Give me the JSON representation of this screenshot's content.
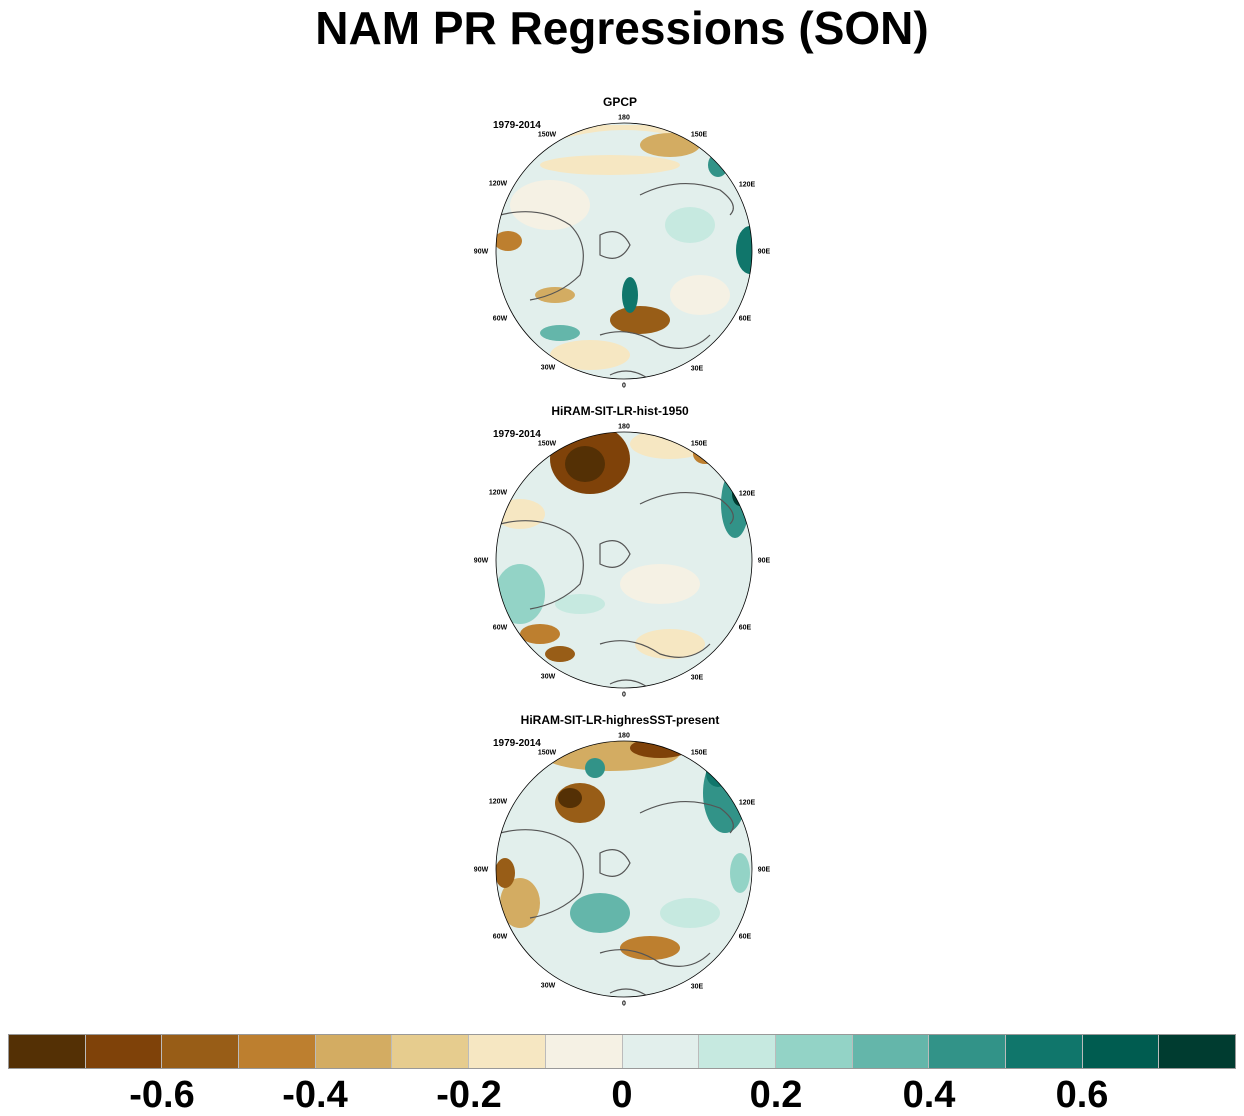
{
  "title": "NAM PR Regressions (SON)",
  "panels": [
    {
      "title": "GPCP",
      "period": "1979-2014"
    },
    {
      "title": "HiRAM-SIT-LR-hist-1950",
      "period": "1979-2014"
    },
    {
      "title": "HiRAM-SIT-LR-highresSST-present",
      "period": "1979-2014"
    }
  ],
  "longitude_labels": [
    "180",
    "150E",
    "120E",
    "90E",
    "60E",
    "30E",
    "0",
    "30W",
    "60W",
    "90W",
    "120W",
    "150W"
  ],
  "colorbar": {
    "colors": [
      "#543005",
      "#7f4209",
      "#985d17",
      "#bd7f2f",
      "#d3ac62",
      "#e6cc8e",
      "#f6e7c2",
      "#f5f1e4",
      "#e2efec",
      "#c6e9e0",
      "#93d3c6",
      "#64b6aa",
      "#329388",
      "#10766b",
      "#005c50",
      "#003c30"
    ],
    "tick_labels": [
      "-0.6",
      "-0.4",
      "-0.2",
      "0",
      "0.2",
      "0.4",
      "0.6"
    ]
  },
  "colors": {
    "coastline": "#555555",
    "neutral": "#f5f1e4"
  }
}
